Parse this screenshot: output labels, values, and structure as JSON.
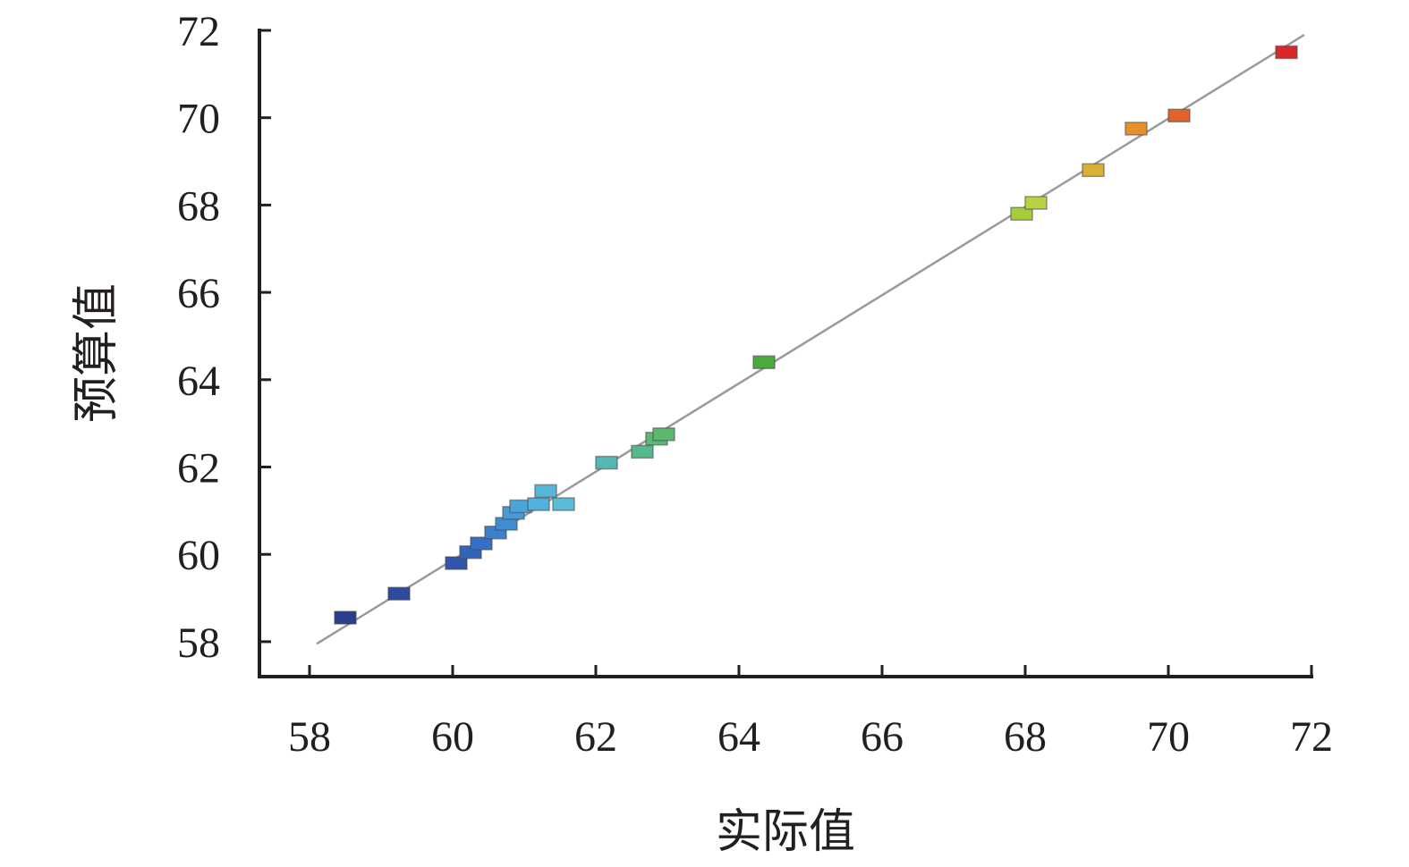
{
  "chart_data": {
    "type": "scatter",
    "title": "",
    "xlabel": "实际值",
    "ylabel": "预算值",
    "xlim": [
      57.3,
      72.0
    ],
    "ylim": [
      57.2,
      72.0
    ],
    "x_ticks": [
      58,
      60,
      62,
      64,
      66,
      68,
      70,
      72
    ],
    "y_ticks": [
      58,
      60,
      62,
      64,
      66,
      68,
      70,
      72
    ],
    "grid": false,
    "legend": "none",
    "reference_line": {
      "x": [
        58.1,
        71.9
      ],
      "y": [
        57.95,
        71.9
      ],
      "color": "#9a9a9a"
    },
    "marker": "square",
    "points": [
      {
        "x": 58.5,
        "y": 58.55,
        "color": "#2b3f8f"
      },
      {
        "x": 59.25,
        "y": 59.1,
        "color": "#2e4a9e"
      },
      {
        "x": 60.05,
        "y": 59.8,
        "color": "#3056ab"
      },
      {
        "x": 60.25,
        "y": 60.05,
        "color": "#3264b9"
      },
      {
        "x": 60.4,
        "y": 60.25,
        "color": "#3570c4"
      },
      {
        "x": 60.6,
        "y": 60.5,
        "color": "#3a80cc"
      },
      {
        "x": 60.75,
        "y": 60.7,
        "color": "#3f8ed3"
      },
      {
        "x": 60.85,
        "y": 60.95,
        "color": "#469ad8"
      },
      {
        "x": 60.95,
        "y": 61.1,
        "color": "#4aa6da"
      },
      {
        "x": 61.2,
        "y": 61.15,
        "color": "#51b0dc"
      },
      {
        "x": 61.3,
        "y": 61.45,
        "color": "#57b7db"
      },
      {
        "x": 61.55,
        "y": 61.15,
        "color": "#5bbcd6"
      },
      {
        "x": 62.15,
        "y": 62.1,
        "color": "#52b8b0"
      },
      {
        "x": 62.65,
        "y": 62.35,
        "color": "#55b98b"
      },
      {
        "x": 62.85,
        "y": 62.65,
        "color": "#5bb975"
      },
      {
        "x": 62.95,
        "y": 62.75,
        "color": "#5cb86c"
      },
      {
        "x": 64.35,
        "y": 64.4,
        "color": "#4aaa3e"
      },
      {
        "x": 67.95,
        "y": 67.8,
        "color": "#a5cd3a"
      },
      {
        "x": 68.15,
        "y": 68.05,
        "color": "#b5d345"
      },
      {
        "x": 68.95,
        "y": 68.8,
        "color": "#d8b136"
      },
      {
        "x": 69.55,
        "y": 69.75,
        "color": "#e88f2c"
      },
      {
        "x": 70.15,
        "y": 70.05,
        "color": "#e2632a"
      },
      {
        "x": 71.65,
        "y": 71.5,
        "color": "#d62a2a"
      }
    ]
  }
}
